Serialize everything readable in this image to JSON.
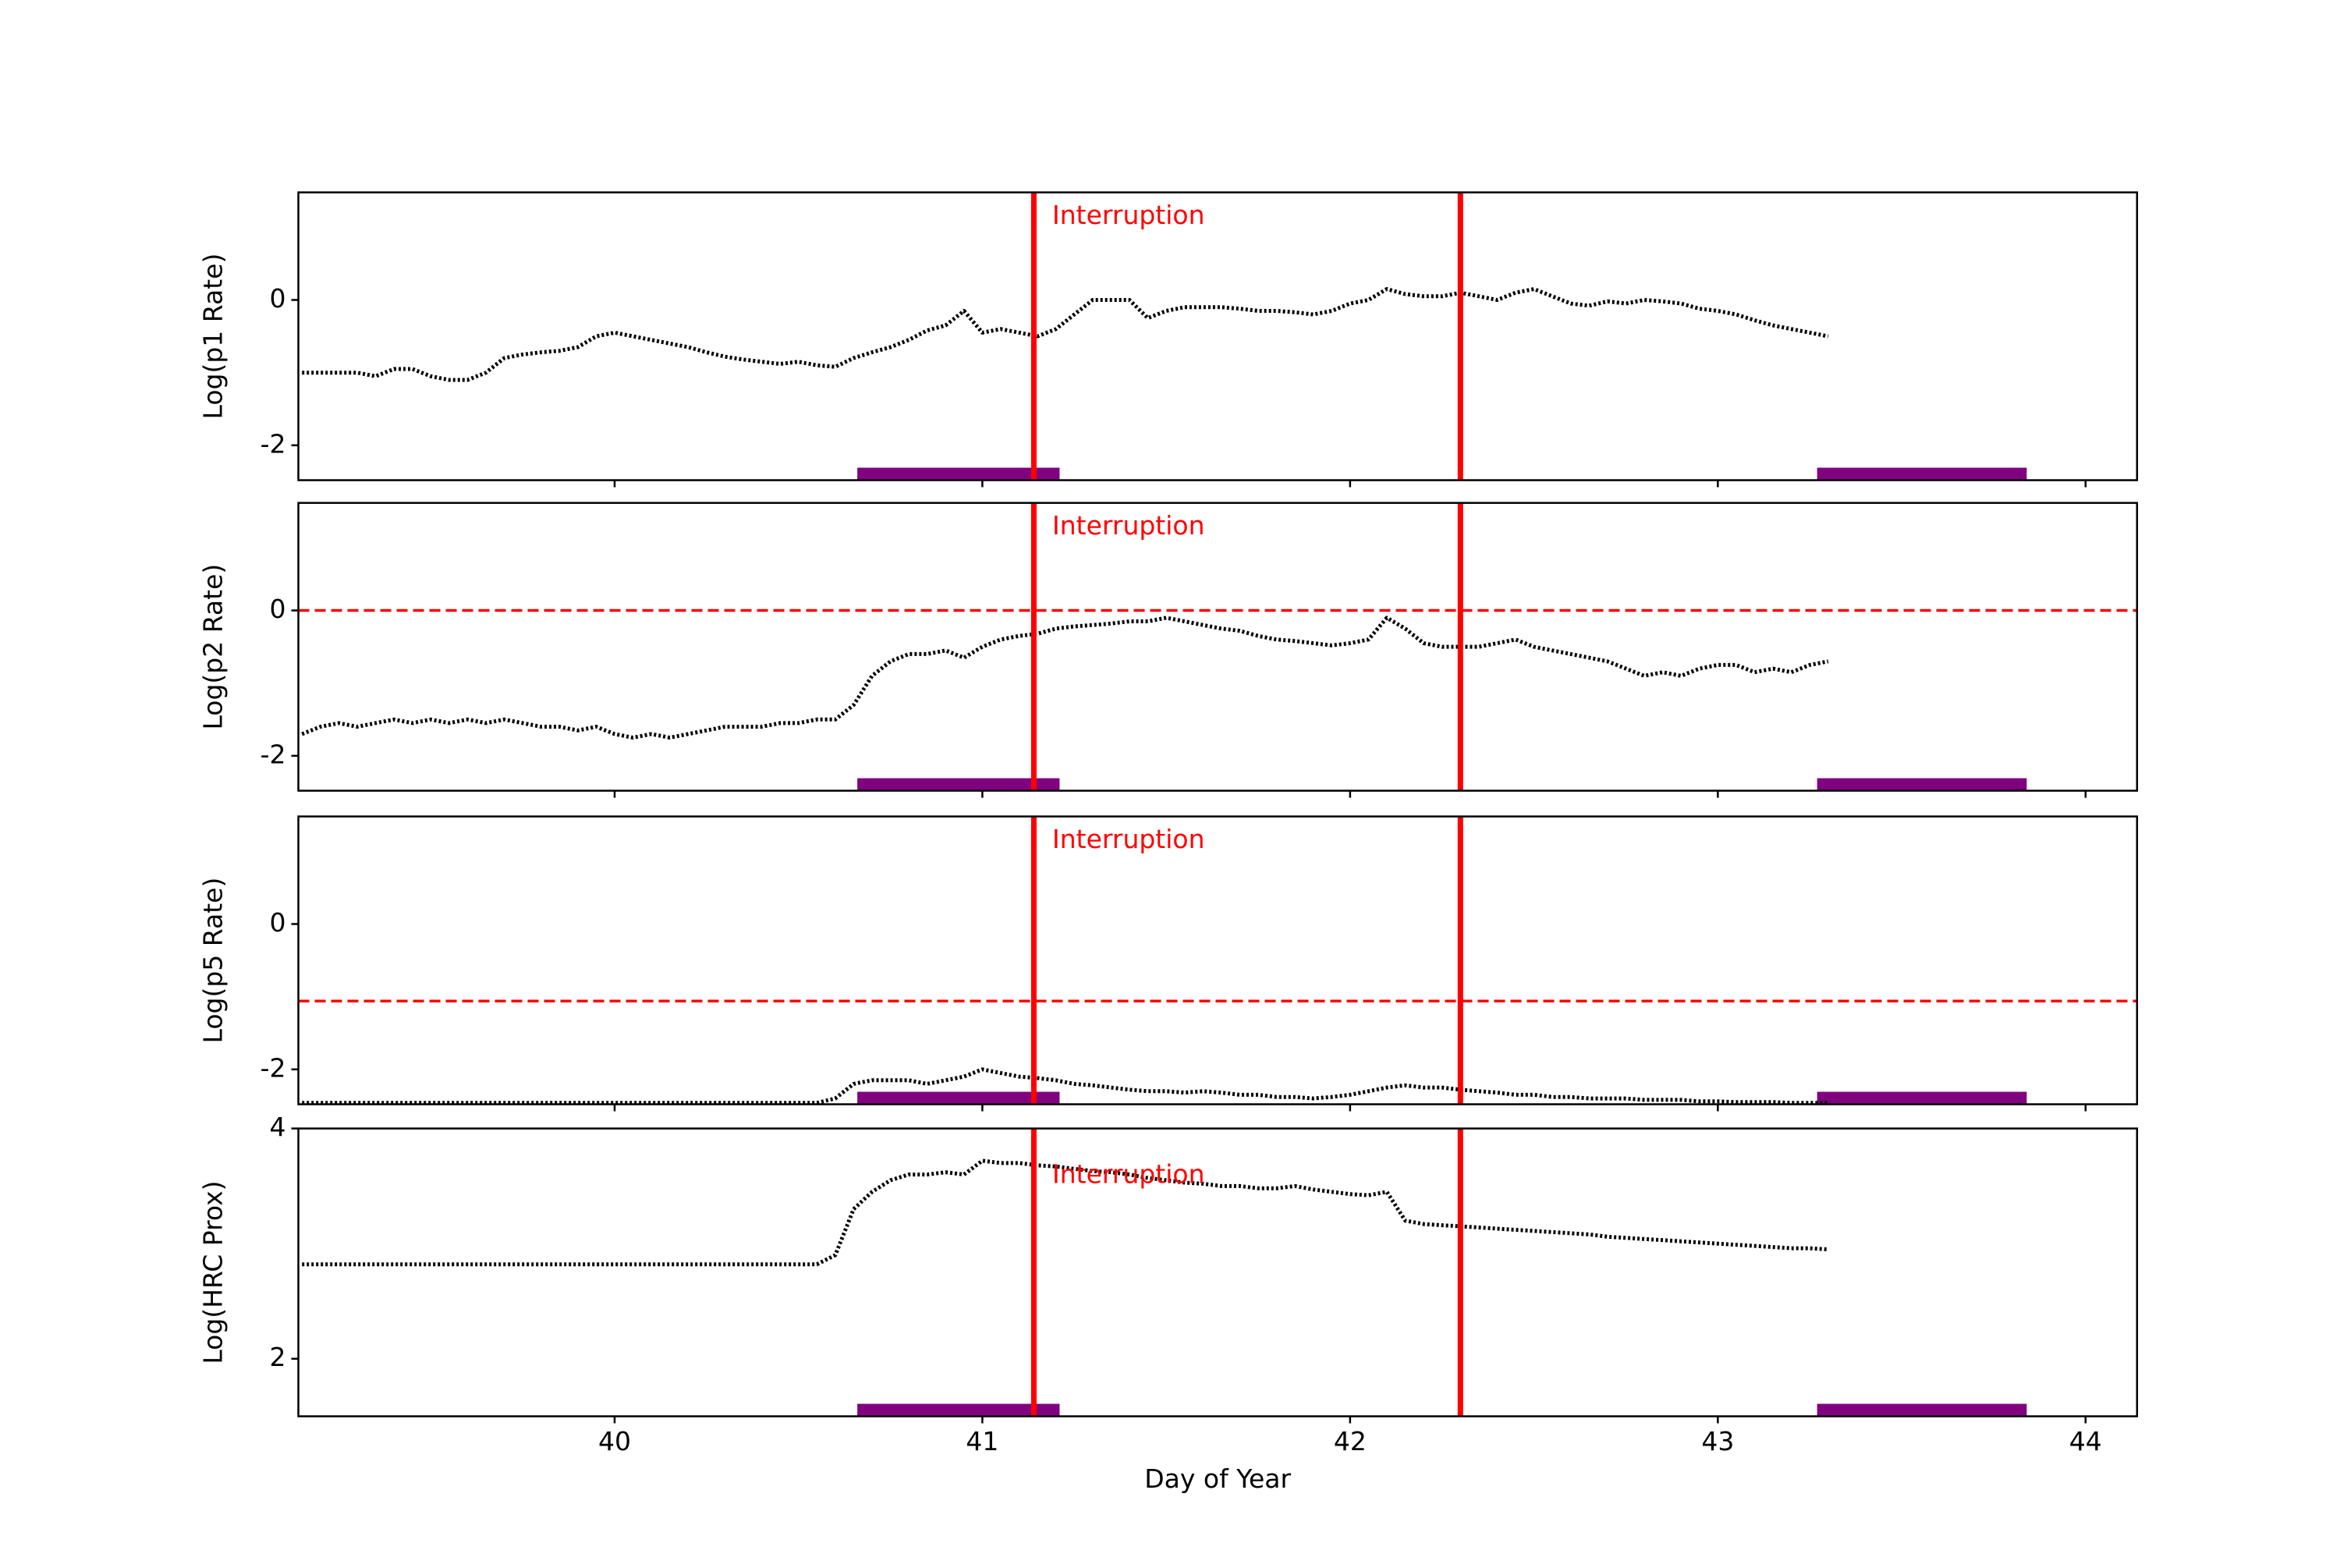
{
  "chart_data": [
    {
      "type": "line",
      "ylabel": "Log(p1 Rate)",
      "color": "#000000",
      "xlim": [
        39.14,
        44.14
      ],
      "xticks": [
        40,
        41,
        42,
        43,
        44
      ],
      "ylim": [
        -2.48,
        1.48
      ],
      "yticks": [
        0,
        -2
      ],
      "x": [
        39.15,
        39.2,
        39.25,
        39.3,
        39.35,
        39.4,
        39.45,
        39.5,
        39.55,
        39.6,
        39.65,
        39.7,
        39.75,
        39.8,
        39.85,
        39.9,
        39.95,
        40.0,
        40.05,
        40.1,
        40.15,
        40.2,
        40.25,
        40.3,
        40.35,
        40.4,
        40.45,
        40.5,
        40.55,
        40.6,
        40.65,
        40.7,
        40.75,
        40.8,
        40.85,
        40.9,
        40.95,
        41.0,
        41.05,
        41.1,
        41.15,
        41.2,
        41.25,
        41.3,
        41.35,
        41.4,
        41.45,
        41.5,
        41.55,
        41.6,
        41.65,
        41.7,
        41.75,
        41.8,
        41.85,
        41.9,
        41.95,
        42.0,
        42.05,
        42.1,
        42.15,
        42.2,
        42.25,
        42.3,
        42.35,
        42.4,
        42.45,
        42.5,
        42.55,
        42.6,
        42.65,
        42.7,
        42.75,
        42.8,
        42.85,
        42.9,
        42.95,
        43.0,
        43.05,
        43.1,
        43.15,
        43.2,
        43.25,
        43.3
      ],
      "values": [
        -1.0,
        -1.0,
        -1.0,
        -1.0,
        -1.05,
        -0.95,
        -0.95,
        -1.05,
        -1.1,
        -1.1,
        -1.0,
        -0.8,
        -0.75,
        -0.72,
        -0.7,
        -0.65,
        -0.5,
        -0.45,
        -0.5,
        -0.55,
        -0.6,
        -0.65,
        -0.72,
        -0.78,
        -0.82,
        -0.85,
        -0.88,
        -0.85,
        -0.9,
        -0.92,
        -0.8,
        -0.72,
        -0.65,
        -0.55,
        -0.42,
        -0.35,
        -0.15,
        -0.45,
        -0.4,
        -0.45,
        -0.5,
        -0.4,
        -0.2,
        0.0,
        0.0,
        0.0,
        -0.25,
        -0.15,
        -0.1,
        -0.1,
        -0.1,
        -0.12,
        -0.15,
        -0.15,
        -0.17,
        -0.2,
        -0.15,
        -0.05,
        0.0,
        0.15,
        0.08,
        0.05,
        0.05,
        0.1,
        0.05,
        0.0,
        0.1,
        0.15,
        0.05,
        -0.05,
        -0.08,
        -0.02,
        -0.05,
        0.0,
        -0.02,
        -0.05,
        -0.12,
        -0.15,
        -0.2,
        -0.28,
        -0.35,
        -0.4,
        -0.45,
        -0.5
      ],
      "vlines": [
        41.14,
        42.3
      ],
      "vline_color": "#ff0000",
      "spans": [
        [
          40.66,
          41.21
        ],
        [
          43.27,
          43.84
        ]
      ],
      "span_color": "#800080",
      "annotation": {
        "text": "Interruption",
        "x": 41.19,
        "y": 1.15
      }
    },
    {
      "type": "line",
      "ylabel": "Log(p2 Rate)",
      "color": "#000000",
      "xlim": [
        39.14,
        44.14
      ],
      "xticks": [
        40,
        41,
        42,
        43,
        44
      ],
      "ylim": [
        -2.48,
        1.48
      ],
      "yticks": [
        0,
        -2
      ],
      "x": [
        39.15,
        39.2,
        39.25,
        39.3,
        39.35,
        39.4,
        39.45,
        39.5,
        39.55,
        39.6,
        39.65,
        39.7,
        39.75,
        39.8,
        39.85,
        39.9,
        39.95,
        40.0,
        40.05,
        40.1,
        40.15,
        40.2,
        40.25,
        40.3,
        40.35,
        40.4,
        40.45,
        40.5,
        40.55,
        40.6,
        40.65,
        40.7,
        40.75,
        40.8,
        40.85,
        40.9,
        40.95,
        41.0,
        41.05,
        41.1,
        41.15,
        41.2,
        41.25,
        41.3,
        41.35,
        41.4,
        41.45,
        41.5,
        41.55,
        41.6,
        41.65,
        41.7,
        41.75,
        41.8,
        41.85,
        41.9,
        41.95,
        42.0,
        42.05,
        42.1,
        42.15,
        42.2,
        42.25,
        42.3,
        42.35,
        42.4,
        42.45,
        42.5,
        42.55,
        42.6,
        42.65,
        42.7,
        42.75,
        42.8,
        42.85,
        42.9,
        42.95,
        43.0,
        43.05,
        43.1,
        43.15,
        43.2,
        43.25,
        43.3
      ],
      "values": [
        -1.7,
        -1.6,
        -1.55,
        -1.6,
        -1.55,
        -1.5,
        -1.55,
        -1.5,
        -1.55,
        -1.5,
        -1.55,
        -1.5,
        -1.55,
        -1.6,
        -1.6,
        -1.65,
        -1.6,
        -1.7,
        -1.75,
        -1.7,
        -1.75,
        -1.7,
        -1.65,
        -1.6,
        -1.6,
        -1.6,
        -1.55,
        -1.55,
        -1.5,
        -1.5,
        -1.3,
        -0.9,
        -0.7,
        -0.6,
        -0.6,
        -0.55,
        -0.65,
        -0.5,
        -0.4,
        -0.35,
        -0.32,
        -0.25,
        -0.22,
        -0.2,
        -0.18,
        -0.15,
        -0.15,
        -0.1,
        -0.15,
        -0.2,
        -0.25,
        -0.28,
        -0.35,
        -0.4,
        -0.42,
        -0.45,
        -0.48,
        -0.45,
        -0.4,
        -0.1,
        -0.25,
        -0.45,
        -0.5,
        -0.5,
        -0.5,
        -0.45,
        -0.4,
        -0.5,
        -0.55,
        -0.6,
        -0.65,
        -0.7,
        -0.8,
        -0.9,
        -0.85,
        -0.9,
        -0.8,
        -0.75,
        -0.75,
        -0.85,
        -0.8,
        -0.85,
        -0.75,
        -0.7
      ],
      "vlines": [
        41.14,
        42.3
      ],
      "vline_color": "#ff0000",
      "hline": 0,
      "spans": [
        [
          40.66,
          41.21
        ],
        [
          43.27,
          43.84
        ]
      ],
      "span_color": "#800080",
      "annotation": {
        "text": "Interruption",
        "x": 41.19,
        "y": 1.15
      }
    },
    {
      "type": "line",
      "ylabel": "Log(p5 Rate)",
      "color": "#000000",
      "xlim": [
        39.14,
        44.14
      ],
      "xticks": [
        40,
        41,
        42,
        43,
        44
      ],
      "ylim": [
        -2.48,
        1.48
      ],
      "yticks": [
        0,
        -2
      ],
      "x": [
        39.15,
        39.2,
        39.25,
        39.3,
        39.35,
        39.4,
        39.45,
        39.5,
        39.55,
        39.6,
        39.65,
        39.7,
        39.75,
        39.8,
        39.85,
        39.9,
        39.95,
        40.0,
        40.05,
        40.1,
        40.15,
        40.2,
        40.25,
        40.3,
        40.35,
        40.4,
        40.45,
        40.5,
        40.55,
        40.6,
        40.65,
        40.7,
        40.75,
        40.8,
        40.85,
        40.9,
        40.95,
        41.0,
        41.05,
        41.1,
        41.15,
        41.2,
        41.25,
        41.3,
        41.35,
        41.4,
        41.45,
        41.5,
        41.55,
        41.6,
        41.65,
        41.7,
        41.75,
        41.8,
        41.85,
        41.9,
        41.95,
        42.0,
        42.05,
        42.1,
        42.15,
        42.2,
        42.25,
        42.3,
        42.35,
        42.4,
        42.45,
        42.5,
        42.55,
        42.6,
        42.65,
        42.7,
        42.75,
        42.8,
        42.85,
        42.9,
        42.95,
        43.0,
        43.05,
        43.1,
        43.15,
        43.2,
        43.25,
        43.3
      ],
      "values": [
        -2.46,
        -2.46,
        -2.46,
        -2.46,
        -2.46,
        -2.46,
        -2.46,
        -2.46,
        -2.46,
        -2.46,
        -2.46,
        -2.46,
        -2.46,
        -2.46,
        -2.46,
        -2.46,
        -2.46,
        -2.46,
        -2.46,
        -2.46,
        -2.46,
        -2.46,
        -2.46,
        -2.46,
        -2.46,
        -2.46,
        -2.46,
        -2.46,
        -2.46,
        -2.4,
        -2.2,
        -2.15,
        -2.15,
        -2.15,
        -2.2,
        -2.15,
        -2.1,
        -2.0,
        -2.05,
        -2.1,
        -2.12,
        -2.15,
        -2.2,
        -2.22,
        -2.25,
        -2.28,
        -2.3,
        -2.3,
        -2.32,
        -2.3,
        -2.32,
        -2.35,
        -2.35,
        -2.38,
        -2.38,
        -2.4,
        -2.38,
        -2.35,
        -2.3,
        -2.25,
        -2.22,
        -2.25,
        -2.25,
        -2.28,
        -2.3,
        -2.32,
        -2.35,
        -2.35,
        -2.38,
        -2.38,
        -2.4,
        -2.4,
        -2.4,
        -2.42,
        -2.42,
        -2.42,
        -2.44,
        -2.44,
        -2.45,
        -2.45,
        -2.45,
        -2.46,
        -2.46,
        -2.46
      ],
      "vlines": [
        41.14,
        42.3
      ],
      "vline_color": "#ff0000",
      "hline": -1.06,
      "spans": [
        [
          40.66,
          41.21
        ],
        [
          43.27,
          43.84
        ]
      ],
      "span_color": "#800080",
      "annotation": {
        "text": "Interruption",
        "x": 41.19,
        "y": 1.15
      }
    },
    {
      "type": "line",
      "ylabel": "Log(HRC Prox)",
      "xlabel": "Day of Year",
      "color": "#000000",
      "xlim": [
        39.14,
        44.14
      ],
      "xticks": [
        40,
        41,
        42,
        43,
        44
      ],
      "ylim": [
        1.5,
        4
      ],
      "yticks": [
        4,
        2
      ],
      "x": [
        39.15,
        39.2,
        39.25,
        39.3,
        39.35,
        39.4,
        39.45,
        39.5,
        39.55,
        39.6,
        39.65,
        39.7,
        39.75,
        39.8,
        39.85,
        39.9,
        39.95,
        40.0,
        40.05,
        40.1,
        40.15,
        40.2,
        40.25,
        40.3,
        40.35,
        40.4,
        40.45,
        40.5,
        40.55,
        40.6,
        40.65,
        40.7,
        40.75,
        40.8,
        40.85,
        40.9,
        40.95,
        41.0,
        41.05,
        41.1,
        41.15,
        41.2,
        41.25,
        41.3,
        41.35,
        41.4,
        41.45,
        41.5,
        41.55,
        41.6,
        41.65,
        41.7,
        41.75,
        41.8,
        41.85,
        41.9,
        41.95,
        42.0,
        42.05,
        42.1,
        42.15,
        42.2,
        42.25,
        42.3,
        42.35,
        42.4,
        42.45,
        42.5,
        42.55,
        42.6,
        42.65,
        42.7,
        42.75,
        42.8,
        42.85,
        42.9,
        42.95,
        43.0,
        43.05,
        43.1,
        43.15,
        43.2,
        43.25,
        43.3
      ],
      "values": [
        2.82,
        2.82,
        2.82,
        2.82,
        2.82,
        2.82,
        2.82,
        2.82,
        2.82,
        2.82,
        2.82,
        2.82,
        2.82,
        2.82,
        2.82,
        2.82,
        2.82,
        2.82,
        2.82,
        2.82,
        2.82,
        2.82,
        2.82,
        2.82,
        2.82,
        2.82,
        2.82,
        2.82,
        2.82,
        2.9,
        3.3,
        3.45,
        3.55,
        3.6,
        3.6,
        3.62,
        3.6,
        3.72,
        3.7,
        3.7,
        3.68,
        3.67,
        3.65,
        3.63,
        3.62,
        3.6,
        3.57,
        3.55,
        3.53,
        3.52,
        3.5,
        3.5,
        3.48,
        3.48,
        3.5,
        3.47,
        3.45,
        3.43,
        3.42,
        3.45,
        3.2,
        3.17,
        3.16,
        3.15,
        3.14,
        3.13,
        3.12,
        3.11,
        3.1,
        3.09,
        3.08,
        3.06,
        3.05,
        3.04,
        3.03,
        3.02,
        3.01,
        3.0,
        2.99,
        2.98,
        2.97,
        2.96,
        2.96,
        2.95
      ],
      "vlines": [
        41.14,
        42.3
      ],
      "vline_color": "#ff0000",
      "spans": [
        [
          40.66,
          41.21
        ],
        [
          43.27,
          43.84
        ]
      ],
      "span_color": "#800080",
      "annotation": {
        "text": "Interruption",
        "x": 41.19,
        "y": 3.59
      }
    }
  ]
}
